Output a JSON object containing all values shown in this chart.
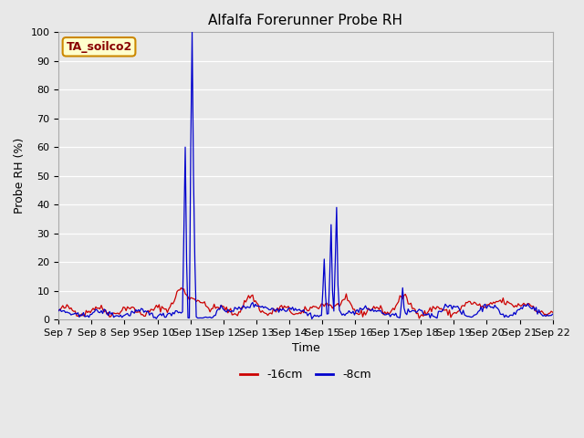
{
  "title": "Alfalfa Forerunner Probe RH",
  "ylabel": "Probe RH (%)",
  "xlabel": "Time",
  "ylim": [
    0,
    100
  ],
  "yticks": [
    0,
    10,
    20,
    30,
    40,
    50,
    60,
    70,
    80,
    90,
    100
  ],
  "xtick_labels": [
    "Sep 7",
    "Sep 8",
    "Sep 9",
    "Sep 10",
    "Sep 11",
    "Sep 12",
    "Sep 13",
    "Sep 14",
    "Sep 15",
    "Sep 16",
    "Sep 17",
    "Sep 18",
    "Sep 19",
    "Sep 20",
    "Sep 21",
    "Sep 22"
  ],
  "legend_label1": "-16cm",
  "legend_label2": "-8cm",
  "legend_color1": "#cc0000",
  "legend_color2": "#0000cc",
  "bg_color": "#e8e8e8",
  "annotation_text": "TA_soilco2",
  "annotation_bg": "#ffffcc",
  "annotation_border": "#cc8800",
  "title_fontsize": 11,
  "axis_label_fontsize": 9,
  "tick_fontsize": 8
}
